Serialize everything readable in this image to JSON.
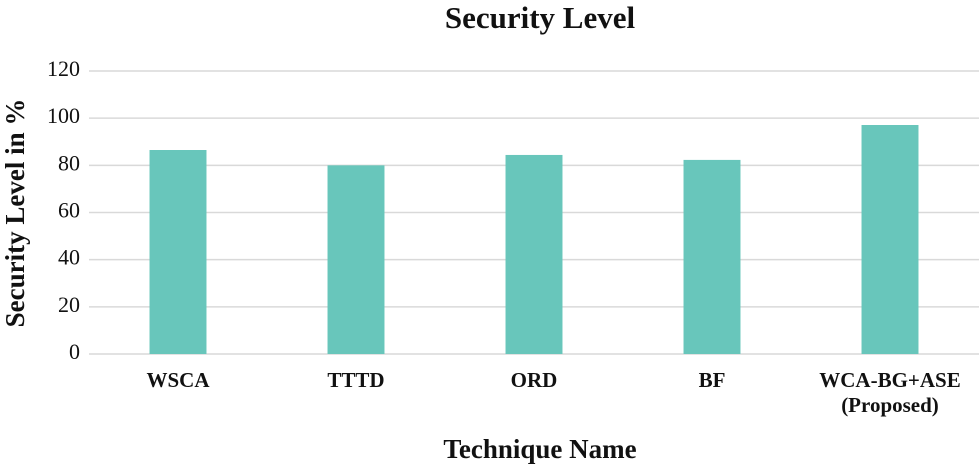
{
  "chart_data": {
    "type": "bar",
    "title": "Security Level",
    "x_label": "Technique Name",
    "y_label": "Security Level in %",
    "categories": [
      "WSCA",
      "TTTD",
      "ORD",
      "BF",
      "WCA-BG+ASE\n(Proposed)"
    ],
    "values": [
      86.5,
      80,
      84.4,
      82.3,
      97.1
    ],
    "color": "#68c6bb",
    "ylim": [
      0,
      120
    ],
    "yticks": [
      0,
      20,
      40,
      60,
      80,
      100,
      120
    ],
    "grid": true
  }
}
